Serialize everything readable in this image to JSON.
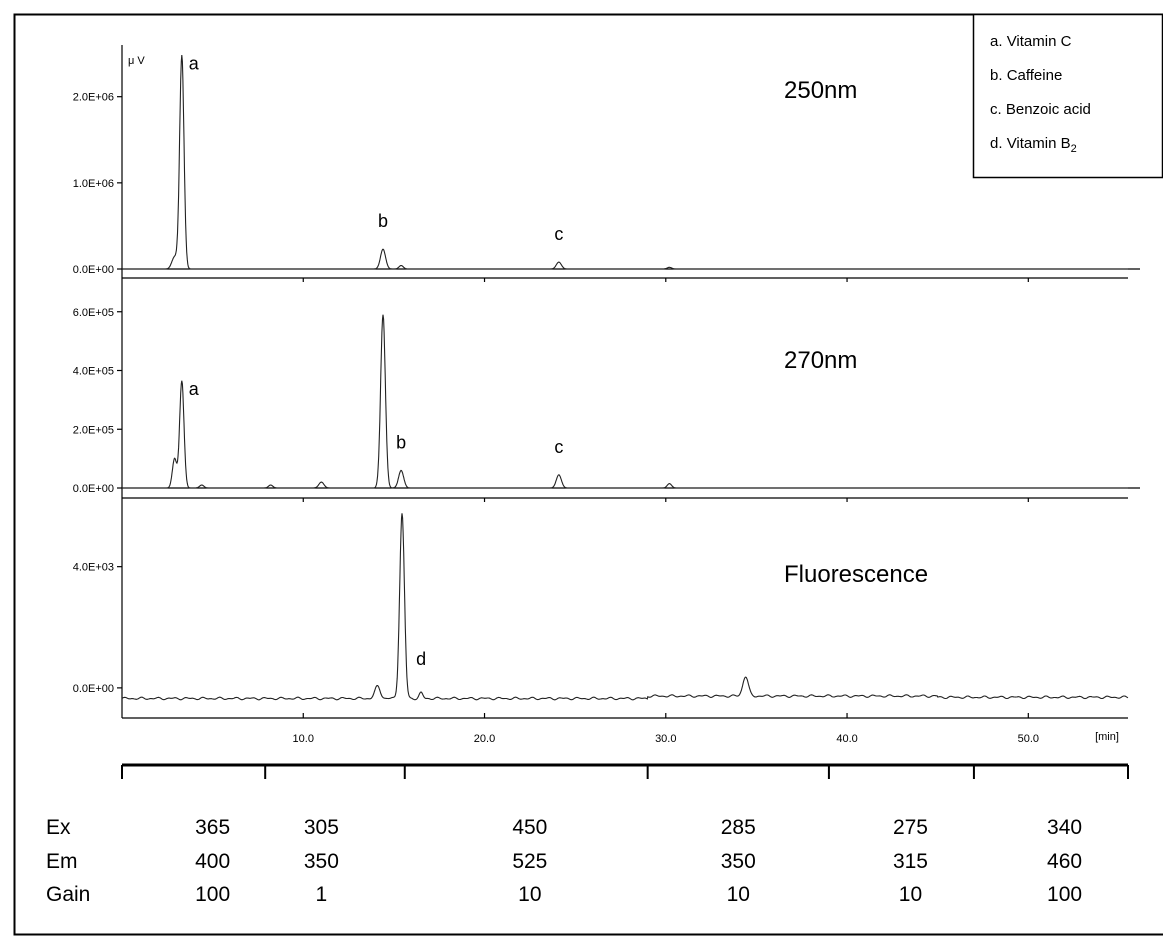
{
  "chart_data": {
    "type": "line",
    "x_unit": "[min]",
    "y_unit": "μ V",
    "x_ticks": [
      "10.0",
      "20.0",
      "30.0",
      "40.0",
      "50.0"
    ],
    "xlim": [
      0,
      55.5
    ],
    "legend": {
      "placement": "top-right",
      "entries": [
        {
          "letter": "a.",
          "name": "Vitamin C"
        },
        {
          "letter": "b.",
          "name": "Caffeine"
        },
        {
          "letter": "c.",
          "name": "Benzoic acid"
        },
        {
          "letter": "d.",
          "name": "Vitamin B",
          "sub": "2"
        }
      ]
    },
    "panels": [
      {
        "label": "250nm",
        "ylim": [
          0,
          2600000.0
        ],
        "yticks": [
          {
            "v": 0,
            "t": "0.0E+00"
          },
          {
            "v": 1000000,
            "t": "1.0E+06"
          },
          {
            "v": 2000000,
            "t": "2.0E+06"
          }
        ],
        "baseline": 0,
        "peaks": [
          {
            "x": 2.9,
            "y": 140000,
            "w": 0.15
          },
          {
            "x": 3.3,
            "y": 2480000,
            "w": 0.12,
            "label": "a"
          },
          {
            "x": 14.4,
            "y": 230000,
            "w": 0.14,
            "label": "b"
          },
          {
            "x": 15.4,
            "y": 40000,
            "w": 0.12
          },
          {
            "x": 24.1,
            "y": 80000,
            "w": 0.14,
            "label": "c"
          },
          {
            "x": 30.2,
            "y": 20000,
            "w": 0.12
          }
        ]
      },
      {
        "label": "270nm",
        "ylim": [
          0,
          640000.0
        ],
        "yticks": [
          {
            "v": 0,
            "t": "0.0E+00"
          },
          {
            "v": 200000,
            "t": "2.0E+05"
          },
          {
            "v": 400000,
            "t": "4.0E+05"
          },
          {
            "v": 600000,
            "t": "6.0E+05"
          }
        ],
        "baseline": 0,
        "peaks": [
          {
            "x": 2.9,
            "y": 100000,
            "w": 0.12
          },
          {
            "x": 3.3,
            "y": 365000,
            "w": 0.12,
            "label": "a"
          },
          {
            "x": 4.4,
            "y": 10000,
            "w": 0.12
          },
          {
            "x": 8.2,
            "y": 10000,
            "w": 0.12
          },
          {
            "x": 11.0,
            "y": 20000,
            "w": 0.14
          },
          {
            "x": 14.4,
            "y": 590000,
            "w": 0.13
          },
          {
            "x": 15.4,
            "y": 60000,
            "w": 0.14,
            "label": "b"
          },
          {
            "x": 24.1,
            "y": 45000,
            "w": 0.14,
            "label": "c"
          },
          {
            "x": 30.2,
            "y": 15000,
            "w": 0.12
          }
        ]
      },
      {
        "label": "Fluorescence",
        "ylim": [
          -400,
          6200
        ],
        "yticks": [
          {
            "v": 0,
            "t": "0.0E+00"
          },
          {
            "v": 4000,
            "t": "4.0E+03"
          }
        ],
        "baseline": -350,
        "peaks": [
          {
            "x": 14.1,
            "y": 400,
            "w": 0.15
          },
          {
            "x": 15.45,
            "y": 6100,
            "w": 0.13
          },
          {
            "x": 16.5,
            "y": 180,
            "w": 0.1,
            "label": "d"
          },
          {
            "x": 34.4,
            "y": 650,
            "w": 0.15
          }
        ]
      }
    ],
    "program": {
      "rows": [
        "Ex",
        "Em",
        "Gain"
      ],
      "segment_bounds": [
        0,
        7.9,
        15.6,
        29.0,
        39.0,
        47.0,
        55.5
      ],
      "columns": [
        {
          "x": 5.0,
          "values": [
            "365",
            "400",
            "100"
          ]
        },
        {
          "x": 11.0,
          "values": [
            "305",
            "350",
            "1"
          ]
        },
        {
          "x": 22.5,
          "values": [
            "450",
            "525",
            "10"
          ]
        },
        {
          "x": 34.0,
          "values": [
            "285",
            "350",
            "10"
          ]
        },
        {
          "x": 43.5,
          "values": [
            "275",
            "315",
            "10"
          ]
        },
        {
          "x": 52.0,
          "values": [
            "340",
            "460",
            "100"
          ]
        }
      ]
    }
  }
}
